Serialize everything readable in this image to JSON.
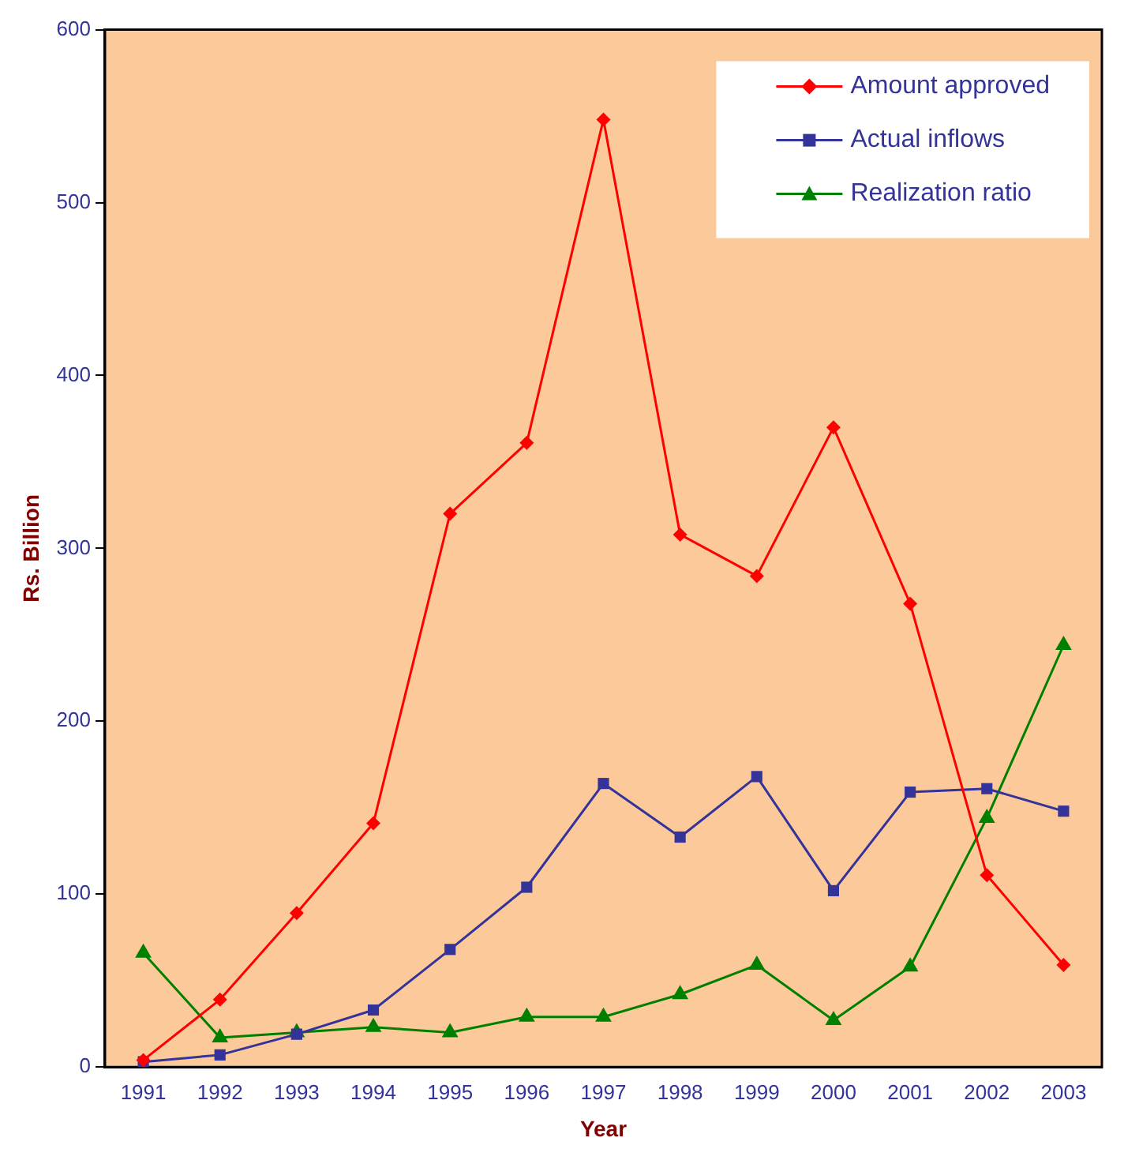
{
  "chart_data": {
    "type": "line",
    "xlabel": "Year",
    "ylabel": "Rs. Billion",
    "categories": [
      "1991",
      "1992",
      "1993",
      "1994",
      "1995",
      "1996",
      "1997",
      "1998",
      "1999",
      "2000",
      "2001",
      "2002",
      "2003"
    ],
    "series": [
      {
        "name": "Amount approved",
        "color": "#ff0000",
        "marker": "diamond",
        "values": [
          4,
          39,
          89,
          141,
          320,
          361,
          548,
          308,
          284,
          370,
          268,
          111,
          59
        ]
      },
      {
        "name": "Actual inflows",
        "color": "#333399",
        "marker": "square",
        "values": [
          3,
          7,
          19,
          33,
          68,
          104,
          164,
          133,
          168,
          102,
          159,
          161,
          148
        ]
      },
      {
        "name": "Realization ratio",
        "color": "#008000",
        "marker": "triangle",
        "values": [
          66,
          17,
          20,
          23,
          20,
          29,
          29,
          42,
          59,
          27,
          58,
          144,
          244
        ]
      }
    ],
    "ylim": [
      0,
      600
    ],
    "yticks": [
      0,
      100,
      200,
      300,
      400,
      500,
      600
    ],
    "grid": false,
    "legend": "top right",
    "line_style": "solid"
  }
}
